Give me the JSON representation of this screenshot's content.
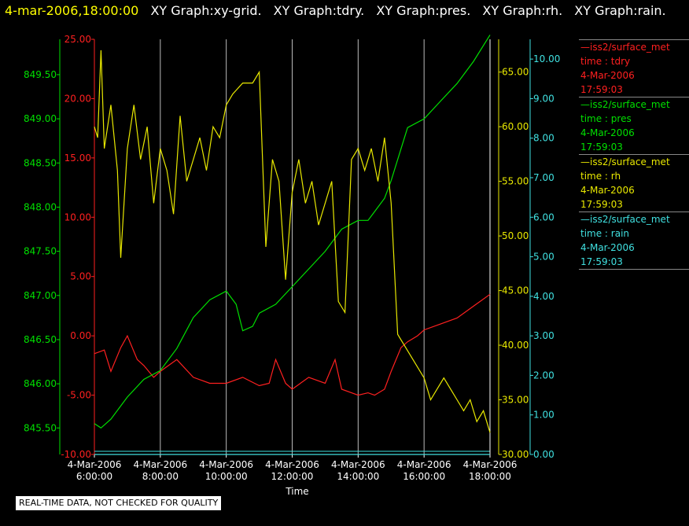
{
  "header": {
    "timestamp": "4-mar-2006,18:00:00",
    "graph_titles": [
      "XY Graph:xy-grid.",
      "XY Graph:tdry.",
      "XY Graph:pres.",
      "XY Graph:rh.",
      "XY Graph:rain."
    ]
  },
  "legend": [
    {
      "source": "iss2/surface_met",
      "field": "time : tdry",
      "date": "4-Mar-2006",
      "time": "17:59:03",
      "color": "#ff2020"
    },
    {
      "source": "iss2/surface_met",
      "field": "time : pres",
      "date": "4-Mar-2006",
      "time": "17:59:03",
      "color": "#00e000"
    },
    {
      "source": "iss2/surface_met",
      "field": "time : rh",
      "date": "4-Mar-2006",
      "time": "17:59:03",
      "color": "#e8e800"
    },
    {
      "source": "iss2/surface_met",
      "field": "time : rain",
      "date": "4-Mar-2006",
      "time": "17:59:03",
      "color": "#40e0e0"
    }
  ],
  "footer": {
    "disclaimer": "REAL-TIME DATA, NOT CHECKED FOR QUALITY"
  },
  "chart_data": {
    "type": "line",
    "xlabel": "Time",
    "x_ticks": [
      {
        "date": "4-Mar-2006",
        "time": "6:00:00"
      },
      {
        "date": "4-Mar-2006",
        "time": "8:00:00"
      },
      {
        "date": "4-Mar-2006",
        "time": "10:00:00"
      },
      {
        "date": "4-Mar-2006",
        "time": "12:00:00"
      },
      {
        "date": "4-Mar-2006",
        "time": "14:00:00"
      },
      {
        "date": "4-Mar-2006",
        "time": "16:00:00"
      },
      {
        "date": "4-Mar-2006",
        "time": "18:00:00"
      }
    ],
    "xlim_hours": [
      6,
      18
    ],
    "grid": "vertical",
    "axes": {
      "tdry": {
        "color": "#ff2020",
        "ylim": [
          -10,
          25
        ],
        "ticks": [
          "-10.00",
          "-5.00",
          "0.00",
          "5.00",
          "10.00",
          "15.00",
          "20.00",
          "25.00"
        ]
      },
      "pres": {
        "color": "#00e000",
        "ylim": [
          845.2,
          849.9
        ],
        "ticks": [
          "845.50",
          "846.00",
          "846.50",
          "847.00",
          "847.50",
          "848.00",
          "848.50",
          "849.00",
          "849.50"
        ]
      },
      "rh": {
        "color": "#e8e800",
        "ylim": [
          30,
          68
        ],
        "ticks": [
          "30.00",
          "35.00",
          "40.00",
          "45.00",
          "50.00",
          "55.00",
          "60.00",
          "65.00"
        ]
      },
      "rain": {
        "color": "#40e0e0",
        "ylim": [
          0,
          10.5
        ],
        "ticks": [
          "0.00",
          "1.00",
          "2.00",
          "3.00",
          "4.00",
          "5.00",
          "6.00",
          "7.00",
          "8.00",
          "9.00",
          "10.00"
        ]
      }
    },
    "series": [
      {
        "name": "tdry",
        "axis": "tdry",
        "x_hours": [
          6.0,
          6.3,
          6.5,
          6.8,
          7.0,
          7.3,
          7.5,
          7.8,
          8.0,
          8.5,
          9.0,
          9.5,
          10.0,
          10.5,
          11.0,
          11.3,
          11.5,
          11.8,
          12.0,
          12.5,
          13.0,
          13.3,
          13.5,
          13.8,
          14.0,
          14.3,
          14.5,
          14.8,
          15.0,
          15.3,
          15.5,
          15.8,
          16.0,
          16.5,
          17.0,
          17.5,
          18.0
        ],
        "values": [
          -1.5,
          -1.2,
          -3.0,
          -1.0,
          0.0,
          -2.0,
          -2.5,
          -3.5,
          -3.0,
          -2.0,
          -3.5,
          -4.0,
          -4.0,
          -3.5,
          -4.2,
          -4.0,
          -2.0,
          -4.0,
          -4.5,
          -3.5,
          -4.0,
          -2.0,
          -4.5,
          -4.8,
          -5.0,
          -4.8,
          -5.0,
          -4.5,
          -3.0,
          -1.0,
          -0.5,
          0.0,
          0.5,
          1.0,
          1.5,
          2.5,
          3.5
        ]
      },
      {
        "name": "pres",
        "axis": "pres",
        "x_hours": [
          6.0,
          6.2,
          6.5,
          7.0,
          7.5,
          8.0,
          8.5,
          9.0,
          9.5,
          10.0,
          10.3,
          10.5,
          10.8,
          11.0,
          11.5,
          12.0,
          12.5,
          13.0,
          13.5,
          14.0,
          14.3,
          14.5,
          14.8,
          15.0,
          15.5,
          16.0,
          16.5,
          17.0,
          17.5,
          18.0
        ],
        "values": [
          845.55,
          845.5,
          845.6,
          845.85,
          846.05,
          846.15,
          846.4,
          846.75,
          846.95,
          847.05,
          846.9,
          846.6,
          846.65,
          846.8,
          846.9,
          847.1,
          847.3,
          847.5,
          847.75,
          847.85,
          847.85,
          847.95,
          848.1,
          848.3,
          848.9,
          849.0,
          849.2,
          849.4,
          849.65,
          849.95
        ]
      },
      {
        "name": "rh",
        "axis": "rh",
        "x_hours": [
          6.0,
          6.1,
          6.2,
          6.3,
          6.5,
          6.7,
          6.8,
          7.0,
          7.2,
          7.4,
          7.6,
          7.8,
          8.0,
          8.2,
          8.4,
          8.6,
          8.8,
          9.0,
          9.2,
          9.4,
          9.6,
          9.8,
          10.0,
          10.2,
          10.5,
          10.8,
          11.0,
          11.2,
          11.4,
          11.6,
          11.8,
          12.0,
          12.2,
          12.4,
          12.6,
          12.8,
          13.0,
          13.2,
          13.4,
          13.6,
          13.8,
          14.0,
          14.2,
          14.4,
          14.6,
          14.8,
          15.0,
          15.2,
          15.4,
          15.6,
          15.8,
          16.0,
          16.2,
          16.4,
          16.6,
          16.8,
          17.0,
          17.2,
          17.4,
          17.6,
          17.8,
          18.0
        ],
        "values": [
          60,
          59,
          67,
          58,
          62,
          56,
          48,
          58,
          62,
          57,
          60,
          53,
          58,
          56,
          52,
          61,
          55,
          57,
          59,
          56,
          60,
          59,
          62,
          63,
          64,
          64,
          65,
          49,
          57,
          55,
          46,
          54,
          57,
          53,
          55,
          51,
          53,
          55,
          44,
          43,
          57,
          58,
          56,
          58,
          55,
          59,
          53,
          41,
          40,
          39,
          38,
          37,
          35,
          36,
          37,
          36,
          35,
          34,
          35,
          33,
          34,
          32
        ]
      },
      {
        "name": "rain",
        "axis": "rain",
        "x_hours": [
          6.0,
          18.0
        ],
        "values": [
          0.0,
          0.0
        ]
      }
    ]
  }
}
